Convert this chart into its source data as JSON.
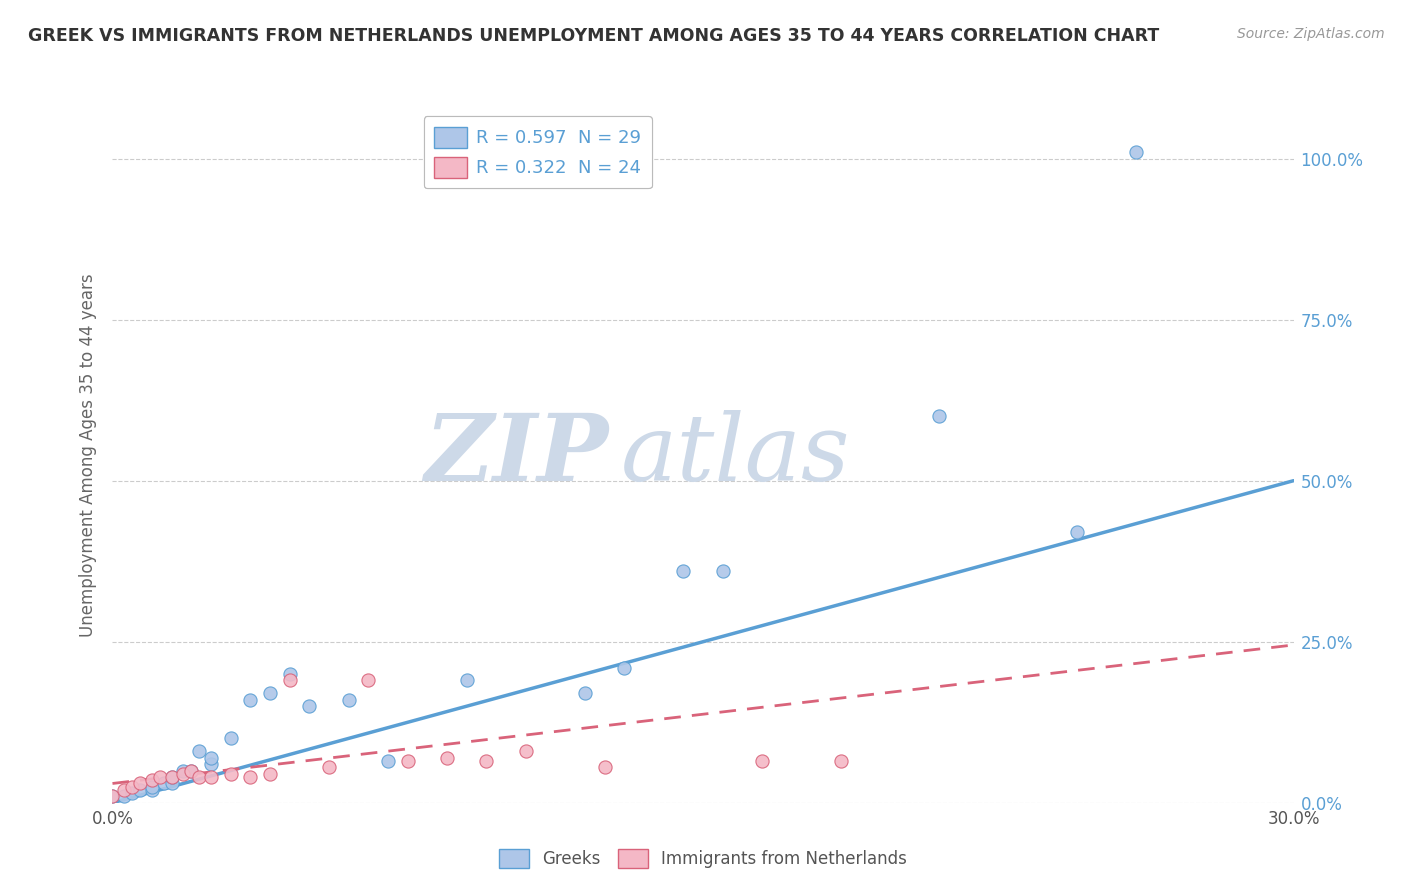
{
  "title": "GREEK VS IMMIGRANTS FROM NETHERLANDS UNEMPLOYMENT AMONG AGES 35 TO 44 YEARS CORRELATION CHART",
  "source": "Source: ZipAtlas.com",
  "ylabel": "Unemployment Among Ages 35 to 44 years",
  "x_min": 0.0,
  "x_max": 0.3,
  "y_min": 0.0,
  "y_max": 1.08,
  "x_ticks": [
    0.0,
    0.05,
    0.1,
    0.15,
    0.2,
    0.25,
    0.3
  ],
  "y_ticks": [
    0.0,
    0.25,
    0.5,
    0.75,
    1.0
  ],
  "y_tick_labels": [
    "0.0%",
    "25.0%",
    "50.0%",
    "75.0%",
    "100.0%"
  ],
  "legend_labels": [
    "Greeks",
    "Immigrants from Netherlands"
  ],
  "legend_r_values": [
    "R = 0.597  N = 29",
    "R = 0.322  N = 24"
  ],
  "blue_color": "#aec6e8",
  "pink_color": "#f4b8c6",
  "blue_line_color": "#5a9fd4",
  "pink_line_color": "#d9637a",
  "title_color": "#333333",
  "axis_label_color": "#666666",
  "watermark_zip": "ZIP",
  "watermark_atlas": "atlas",
  "watermark_color": "#cdd9e8",
  "blue_scatter_x": [
    0.0,
    0.003,
    0.005,
    0.007,
    0.01,
    0.01,
    0.013,
    0.015,
    0.015,
    0.018,
    0.02,
    0.022,
    0.025,
    0.025,
    0.03,
    0.035,
    0.04,
    0.045,
    0.05,
    0.06,
    0.07,
    0.09,
    0.12,
    0.13,
    0.145,
    0.155,
    0.21,
    0.245,
    0.26
  ],
  "blue_scatter_y": [
    0.01,
    0.01,
    0.015,
    0.02,
    0.02,
    0.025,
    0.03,
    0.03,
    0.04,
    0.05,
    0.05,
    0.08,
    0.06,
    0.07,
    0.1,
    0.16,
    0.17,
    0.2,
    0.15,
    0.16,
    0.065,
    0.19,
    0.17,
    0.21,
    0.36,
    0.36,
    0.6,
    0.42,
    1.01
  ],
  "pink_scatter_x": [
    0.0,
    0.003,
    0.005,
    0.007,
    0.01,
    0.012,
    0.015,
    0.018,
    0.02,
    0.022,
    0.025,
    0.03,
    0.035,
    0.04,
    0.045,
    0.055,
    0.065,
    0.075,
    0.085,
    0.095,
    0.105,
    0.125,
    0.165,
    0.185
  ],
  "pink_scatter_y": [
    0.01,
    0.02,
    0.025,
    0.03,
    0.035,
    0.04,
    0.04,
    0.045,
    0.05,
    0.04,
    0.04,
    0.045,
    0.04,
    0.045,
    0.19,
    0.055,
    0.19,
    0.065,
    0.07,
    0.065,
    0.08,
    0.055,
    0.065,
    0.065
  ],
  "blue_trend_x": [
    0.0,
    0.3
  ],
  "blue_trend_y": [
    0.0,
    0.5
  ],
  "pink_trend_x": [
    0.0,
    0.3
  ],
  "pink_trend_y": [
    0.03,
    0.245
  ],
  "background_color": "#ffffff",
  "grid_color": "#cccccc"
}
